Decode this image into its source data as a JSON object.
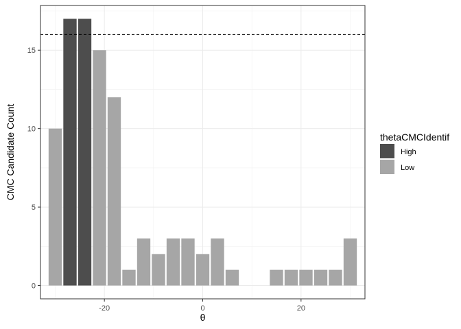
{
  "chart_data": {
    "type": "bar",
    "xlabel": "θ",
    "ylabel": "CMC Candidate Count",
    "xlim": [
      -33,
      33
    ],
    "ylim": [
      -0.85,
      17.85
    ],
    "xticks": [
      -20,
      0,
      20
    ],
    "yticks": [
      0,
      5,
      10,
      15
    ],
    "grid": true,
    "bar_width": 2.7,
    "threshold": 16,
    "legend": {
      "title": "thetaCMCIdentif",
      "position": "right",
      "entries": [
        {
          "label": "High",
          "color": "#4d4d4d"
        },
        {
          "label": "Low",
          "color": "#a6a6a6"
        }
      ]
    },
    "series": [
      {
        "name": "High",
        "color": "#4d4d4d",
        "points": [
          {
            "x": -27,
            "y": 17
          },
          {
            "x": -24,
            "y": 17
          }
        ]
      },
      {
        "name": "Low",
        "color": "#a6a6a6",
        "points": [
          {
            "x": -30,
            "y": 10
          },
          {
            "x": -21,
            "y": 15
          },
          {
            "x": -18,
            "y": 12
          },
          {
            "x": -15,
            "y": 1
          },
          {
            "x": -12,
            "y": 3
          },
          {
            "x": -9,
            "y": 2
          },
          {
            "x": -6,
            "y": 3
          },
          {
            "x": -3,
            "y": 3
          },
          {
            "x": 0,
            "y": 2
          },
          {
            "x": 3,
            "y": 3
          },
          {
            "x": 6,
            "y": 1
          },
          {
            "x": 15,
            "y": 1
          },
          {
            "x": 18,
            "y": 1
          },
          {
            "x": 21,
            "y": 1
          },
          {
            "x": 24,
            "y": 1
          },
          {
            "x": 27,
            "y": 1
          },
          {
            "x": 30,
            "y": 3
          }
        ]
      }
    ]
  }
}
